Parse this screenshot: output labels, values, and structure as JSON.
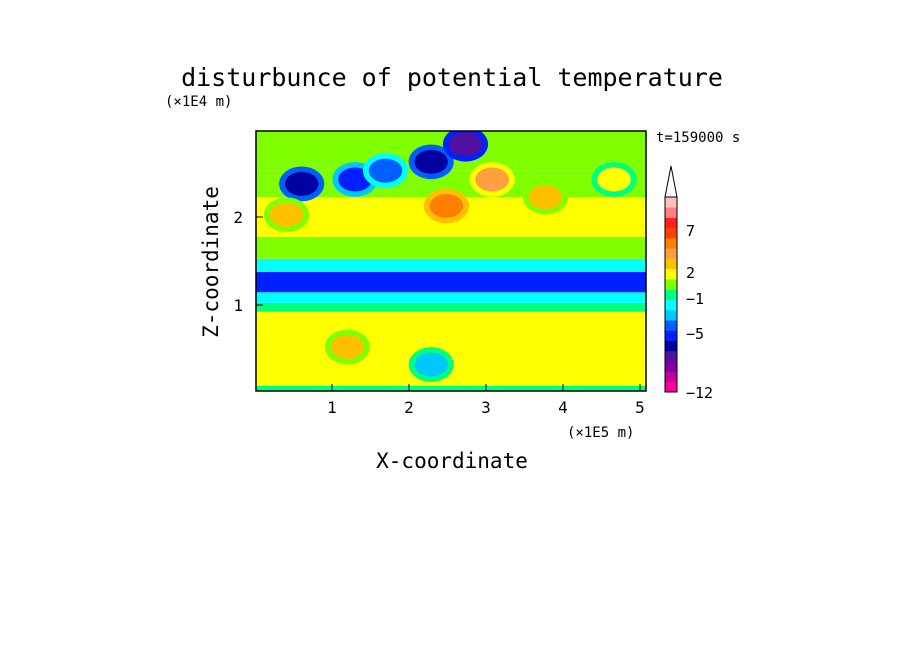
{
  "chart_data": {
    "type": "heatmap",
    "title": "disturbunce of potential temperature",
    "xlabel": "X-coordinate",
    "ylabel": "Z-coordinate",
    "x_unit": "(×1E5 m)",
    "y_unit": "(×1E4 m)",
    "time_label": "t=159000 s",
    "xlim": [
      0,
      5.12
    ],
    "ylim": [
      0,
      2.95
    ],
    "x_ticks": [
      "1",
      "2",
      "3",
      "4",
      "5"
    ],
    "y_ticks": [
      "1",
      "2"
    ],
    "colorbar": {
      "levels": [
        -12,
        -10,
        -8,
        -6,
        -5,
        -4,
        -3,
        -2,
        -1,
        0,
        1,
        2,
        3,
        4,
        5,
        6,
        7,
        9,
        11
      ],
      "colors": [
        "#ff00a0",
        "#c000a0",
        "#8000a0",
        "#5010a0",
        "#0000a0",
        "#0020ff",
        "#0060ff",
        "#00c8ff",
        "#00ffff",
        "#00ff80",
        "#80ff00",
        "#ffff00",
        "#ffc000",
        "#ffa040",
        "#ff8000",
        "#ff4000",
        "#ff2020",
        "#ff8080",
        "#ffc0c0"
      ],
      "tick_labels": [
        "7",
        "2",
        "−1",
        "−5",
        "−12"
      ],
      "extend": "max"
    },
    "bands": [
      {
        "z_range": [
          0,
          0.06
        ],
        "value": 0.5
      },
      {
        "z_range": [
          0.06,
          0.3
        ],
        "value": 2.5
      },
      {
        "z_range": [
          0.3,
          0.55
        ],
        "value": 2.2
      },
      {
        "z_range": [
          0.55,
          0.9
        ],
        "value": 2.0
      },
      {
        "z_range": [
          0.9,
          1.0
        ],
        "value": 0.6
      },
      {
        "z_range": [
          1.0,
          1.12
        ],
        "value": -0.8
      },
      {
        "z_range": [
          1.12,
          1.35
        ],
        "value": -4.0
      },
      {
        "z_range": [
          1.35,
          1.5
        ],
        "value": -0.8
      },
      {
        "z_range": [
          1.5,
          1.75
        ],
        "value": 1.2
      },
      {
        "z_range": [
          1.75,
          2.2
        ],
        "value": 2.3
      },
      {
        "z_range": [
          2.2,
          2.5
        ],
        "value": 1.5
      },
      {
        "z_range": [
          2.5,
          2.95
        ],
        "value": 1.0
      }
    ],
    "features": [
      {
        "x": 0.6,
        "z": 2.35,
        "value": -5
      },
      {
        "x": 1.3,
        "z": 2.4,
        "value": -4
      },
      {
        "x": 1.7,
        "z": 2.5,
        "value": -3
      },
      {
        "x": 2.3,
        "z": 2.6,
        "value": -5
      },
      {
        "x": 2.75,
        "z": 2.8,
        "value": -6
      },
      {
        "x": 2.3,
        "z": 0.3,
        "value": -2
      },
      {
        "x": 2.5,
        "z": 2.1,
        "value": 5
      },
      {
        "x": 3.1,
        "z": 2.4,
        "value": 4
      },
      {
        "x": 0.4,
        "z": 2.0,
        "value": 3
      },
      {
        "x": 1.2,
        "z": 0.5,
        "value": 3
      },
      {
        "x": 3.8,
        "z": 2.2,
        "value": 3
      },
      {
        "x": 4.7,
        "z": 2.4,
        "value": 2
      }
    ]
  }
}
